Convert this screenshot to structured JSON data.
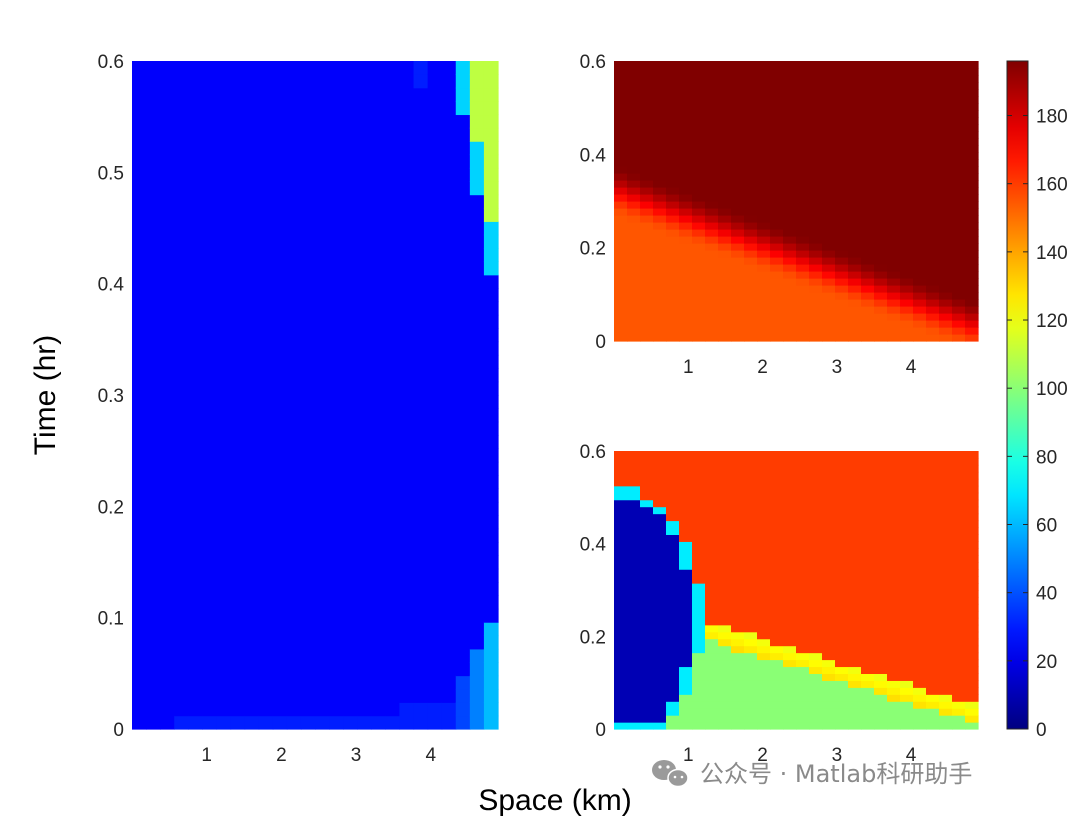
{
  "figure": {
    "xlabel": "Space (km)",
    "ylabel": "Time (hr)"
  },
  "watermark": {
    "text": "公众号 · Matlab科研助手",
    "icon": "wechat-icon"
  },
  "colormap": "jet",
  "colorbar": {
    "range": [
      0,
      196
    ],
    "ticks": [
      0,
      20,
      40,
      60,
      80,
      100,
      120,
      140,
      160,
      180
    ],
    "tick_labels": [
      "0",
      "20",
      "40",
      "60",
      "80",
      "100",
      "120",
      "140",
      "160",
      "180"
    ]
  },
  "chart_data": [
    {
      "type": "heatmap",
      "panel": "left",
      "x_range": [
        0,
        4.9
      ],
      "y_range": [
        0,
        0.6
      ],
      "xticks": [
        1,
        2,
        3,
        4
      ],
      "xtick_labels": [
        "1",
        "2",
        "3",
        "4"
      ],
      "yticks": [
        0,
        0.1,
        0.2,
        0.3,
        0.4,
        0.5,
        0.6
      ],
      "ytick_labels": [
        "0",
        "0.1",
        "0.2",
        "0.3",
        "0.4",
        "0.5",
        "0.6"
      ],
      "description_values": {
        "background": 24,
        "upper_right_region": 110,
        "front_values": 65
      }
    },
    {
      "type": "heatmap",
      "panel": "top-right",
      "x_range": [
        0,
        4.9
      ],
      "y_range": [
        0,
        0.6
      ],
      "xticks": [
        1,
        2,
        3,
        4
      ],
      "xtick_labels": [
        "1",
        "2",
        "3",
        "4"
      ],
      "yticks": [
        0,
        0.2,
        0.4,
        0.6
      ],
      "ytick_labels": [
        "0",
        "0.2",
        "0.4",
        "0.6"
      ],
      "description_values": {
        "low_region": 155,
        "high_region": 196
      }
    },
    {
      "type": "heatmap",
      "panel": "bottom-right",
      "x_range": [
        0,
        4.9
      ],
      "y_range": [
        0,
        0.6
      ],
      "xticks": [
        1,
        2,
        3,
        4
      ],
      "xtick_labels": [
        "1",
        "2",
        "3",
        "4"
      ],
      "yticks": [
        0,
        0.2,
        0.4,
        0.6
      ],
      "ytick_labels": [
        "0",
        "0.2",
        "0.4",
        "0.6"
      ],
      "description_values": {
        "upper_region": 160,
        "lower_region": 100,
        "left_pocket": 10,
        "front_peak": 125
      }
    }
  ]
}
